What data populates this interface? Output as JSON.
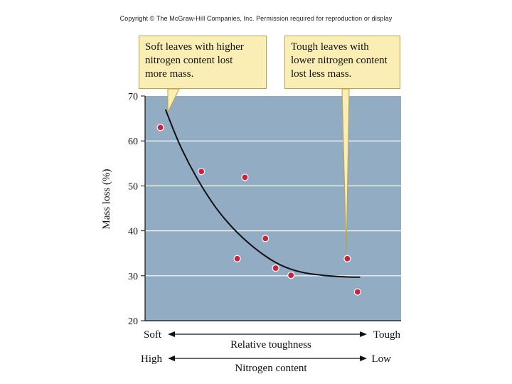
{
  "copyright": "Copyright © The McGraw-Hill Companies, Inc. Permission required for reproduction or display",
  "callouts": {
    "left": {
      "line1": "Soft leaves with higher",
      "line2": "nitrogen content lost",
      "line3": "more mass."
    },
    "right": {
      "line1": "Tough leaves with",
      "line2": "lower nitrogen content",
      "line3": "lost less mass."
    }
  },
  "colors": {
    "plot_background": "#92acc4",
    "point": "#c8243f",
    "curve": "#111111",
    "callout": "#fbeeb5",
    "grid": "#ffffff"
  },
  "chart_data": {
    "type": "scatter",
    "title": "",
    "ylabel": "Mass loss (%)",
    "ylim": [
      20,
      70
    ],
    "yticks": [
      20,
      30,
      40,
      50,
      60,
      70
    ],
    "grid": true,
    "xlabel": "Relative toughness",
    "x_left_label": "Soft",
    "x_right_label": "Tough",
    "x2label": "Nitrogen content",
    "x2_left_label": "High",
    "x2_right_label": "Low",
    "xlim": [
      0,
      1
    ],
    "points": [
      {
        "x": 0.06,
        "y": 63
      },
      {
        "x": 0.22,
        "y": 53.2
      },
      {
        "x": 0.39,
        "y": 51.9
      },
      {
        "x": 0.36,
        "y": 33.8
      },
      {
        "x": 0.47,
        "y": 38.3
      },
      {
        "x": 0.51,
        "y": 31.7
      },
      {
        "x": 0.57,
        "y": 30.1
      },
      {
        "x": 0.79,
        "y": 33.8
      },
      {
        "x": 0.83,
        "y": 26.4
      }
    ],
    "trend_curve": [
      {
        "x": 0.08,
        "y": 67
      },
      {
        "x": 0.12,
        "y": 61
      },
      {
        "x": 0.17,
        "y": 55
      },
      {
        "x": 0.23,
        "y": 49
      },
      {
        "x": 0.29,
        "y": 44
      },
      {
        "x": 0.36,
        "y": 39.5
      },
      {
        "x": 0.44,
        "y": 35.5
      },
      {
        "x": 0.52,
        "y": 32.5
      },
      {
        "x": 0.6,
        "y": 30.8
      },
      {
        "x": 0.7,
        "y": 30
      },
      {
        "x": 0.8,
        "y": 29.7
      },
      {
        "x": 0.84,
        "y": 29.7
      }
    ]
  }
}
